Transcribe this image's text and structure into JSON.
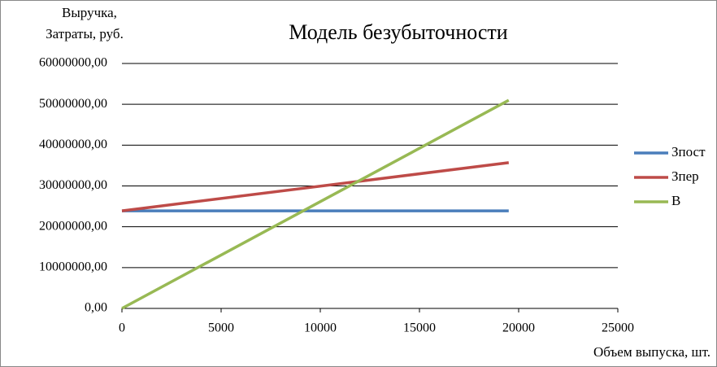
{
  "chart_data": {
    "type": "line",
    "title": "Модель безубыточности",
    "ylabel": [
      "Выручка,",
      "Затраты, руб."
    ],
    "xlabel": "Объем выпуска, шт.",
    "x": [
      0,
      19500
    ],
    "series": [
      {
        "name": "Зпост",
        "color": "#4a7ebb",
        "values": [
          23900000,
          23900000
        ]
      },
      {
        "name": "Зпер",
        "color": "#be4b48",
        "values": [
          23900000,
          35700000
        ]
      },
      {
        "name": "В",
        "color": "#98b954",
        "values": [
          0,
          51000000
        ]
      }
    ],
    "xlim": [
      0,
      25000
    ],
    "xticks": [
      0,
      5000,
      10000,
      15000,
      20000,
      25000
    ],
    "ylim": [
      0,
      60000000
    ],
    "yticks": [
      {
        "value": 0,
        "label": "0,00"
      },
      {
        "value": 10000000,
        "label": "10000000,00"
      },
      {
        "value": 20000000,
        "label": "20000000,00"
      },
      {
        "value": 30000000,
        "label": "30000000,00"
      },
      {
        "value": 40000000,
        "label": "40000000,00"
      },
      {
        "value": 50000000,
        "label": "50000000,00"
      },
      {
        "value": 60000000,
        "label": "60000000,00"
      }
    ],
    "grid": true,
    "legend": "right"
  }
}
